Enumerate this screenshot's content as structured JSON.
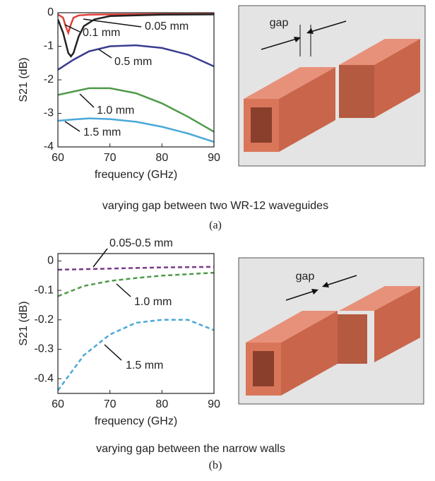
{
  "chart_data": [
    {
      "type": "line",
      "xlabel": "frequency (GHz)",
      "ylabel": "S21 (dB)",
      "xlim": [
        60,
        90
      ],
      "ylim": [
        -4,
        0
      ],
      "xticks": [
        60,
        70,
        80,
        90
      ],
      "yticks": [
        0,
        -1,
        -2,
        -3,
        -4
      ],
      "dashed": false,
      "series": [
        {
          "name": "0.05 mm",
          "color": "#e0413a",
          "x": [
            60,
            61,
            61.5,
            62,
            62.5,
            63,
            64,
            66,
            70,
            80,
            90
          ],
          "values": [
            -0.05,
            -0.15,
            -0.4,
            -0.6,
            -0.35,
            -0.15,
            -0.08,
            -0.06,
            -0.05,
            -0.04,
            -0.04
          ]
        },
        {
          "name": "0.1 mm",
          "color": "#222222",
          "x": [
            60,
            61,
            62,
            62.5,
            63,
            64,
            65,
            67,
            70,
            80,
            90
          ],
          "values": [
            -0.2,
            -0.6,
            -1.2,
            -1.3,
            -1.2,
            -0.7,
            -0.4,
            -0.2,
            -0.1,
            -0.06,
            -0.05
          ]
        },
        {
          "name": "0.5 mm",
          "color": "#3a3d8f",
          "x": [
            60,
            63,
            66,
            70,
            75,
            80,
            85,
            90
          ],
          "values": [
            -1.7,
            -1.4,
            -1.15,
            -1.0,
            -0.97,
            -1.05,
            -1.25,
            -1.6
          ]
        },
        {
          "name": "1.0 mm",
          "color": "#4f9a4a",
          "x": [
            60,
            63,
            66,
            70,
            75,
            80,
            85,
            90
          ],
          "values": [
            -2.45,
            -2.35,
            -2.25,
            -2.25,
            -2.4,
            -2.7,
            -3.1,
            -3.55
          ]
        },
        {
          "name": "1.5 mm",
          "color": "#4aa8d8",
          "x": [
            60,
            63,
            66,
            70,
            75,
            80,
            85,
            90
          ],
          "values": [
            -3.22,
            -3.18,
            -3.15,
            -3.17,
            -3.25,
            -3.4,
            -3.6,
            -3.85
          ]
        }
      ]
    },
    {
      "type": "line",
      "xlabel": "frequency (GHz)",
      "ylabel": "S21 (dB)",
      "xlim": [
        60,
        90
      ],
      "ylim": [
        -0.45,
        0.025
      ],
      "xticks": [
        60,
        70,
        80,
        90
      ],
      "yticks": [
        0,
        -0.1,
        -0.2,
        -0.3,
        -0.4
      ],
      "dashed": true,
      "series": [
        {
          "name": "0.05-0.5 mm",
          "color": "#7a3a8a",
          "x": [
            60,
            65,
            70,
            75,
            80,
            85,
            90
          ],
          "values": [
            -0.03,
            -0.028,
            -0.026,
            -0.024,
            -0.022,
            -0.021,
            -0.02
          ]
        },
        {
          "name": "1.0 mm",
          "color": "#4f9a4a",
          "x": [
            60,
            65,
            70,
            75,
            80,
            85,
            90
          ],
          "values": [
            -0.12,
            -0.085,
            -0.068,
            -0.058,
            -0.05,
            -0.045,
            -0.04
          ]
        },
        {
          "name": "1.5 mm",
          "color": "#4aa8d8",
          "x": [
            60,
            65,
            70,
            75,
            80,
            85,
            90
          ],
          "values": [
            -0.44,
            -0.32,
            -0.25,
            -0.21,
            -0.2,
            -0.2,
            -0.235
          ]
        }
      ]
    }
  ],
  "captions": [
    "varying gap between two WR-12 waveguides",
    "(a)",
    "varying gap between the narrow walls",
    "(b)"
  ],
  "image_labels": [
    "gap",
    "gap"
  ]
}
